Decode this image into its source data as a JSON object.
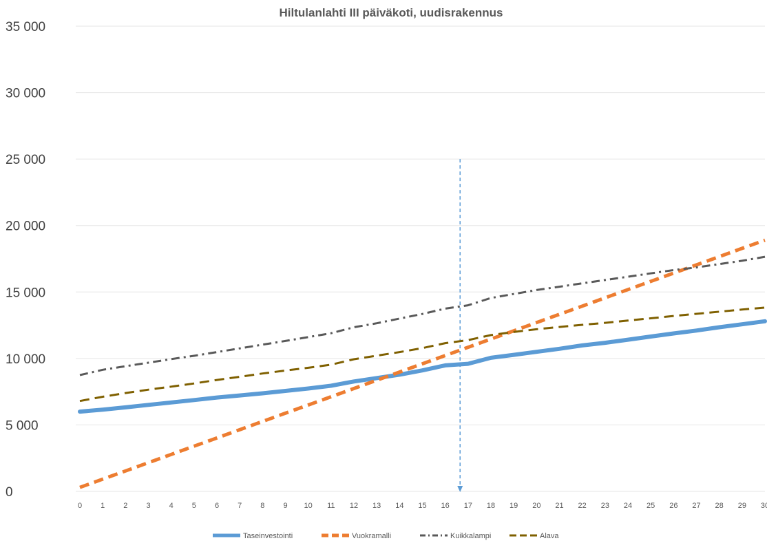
{
  "chart_data": {
    "type": "line",
    "title": "Hiltulanlahti III päiväkoti, uudisrakennus",
    "xlabel": "",
    "ylabel": "",
    "ylim": [
      0,
      35000
    ],
    "yticks": [
      0,
      5000,
      10000,
      15000,
      20000,
      25000,
      30000,
      35000
    ],
    "ytick_labels": [
      "0",
      "5 000",
      "10 000",
      "15 000",
      "20 000",
      "25 000",
      "30 000",
      "35 000"
    ],
    "xlim": [
      0,
      30
    ],
    "x": [
      0,
      1,
      2,
      3,
      4,
      5,
      6,
      7,
      8,
      9,
      10,
      11,
      12,
      13,
      14,
      15,
      16,
      17,
      18,
      19,
      20,
      21,
      22,
      23,
      24,
      25,
      26,
      27,
      28,
      29,
      30
    ],
    "x_labels": [
      "0",
      "1",
      "2",
      "3",
      "4",
      "5",
      "6",
      "7",
      "8",
      "9",
      "10",
      "11",
      "12",
      "13",
      "14",
      "15",
      "16",
      "17",
      "18",
      "19",
      "20",
      "21",
      "22",
      "23",
      "24",
      "25",
      "26",
      "27",
      "28",
      "29",
      "30"
    ],
    "grid": "horizontal",
    "legend_position": "bottom",
    "marker_x": 16.65,
    "series": [
      {
        "name": "Taseinvestointi",
        "color": "#5b9bd5",
        "dash": "solid",
        "values": [
          6000,
          6150,
          6320,
          6510,
          6690,
          6870,
          7060,
          7220,
          7380,
          7560,
          7740,
          7950,
          8270,
          8520,
          8780,
          9100,
          9480,
          9600,
          10050,
          10270,
          10500,
          10730,
          10980,
          11180,
          11410,
          11650,
          11880,
          12100,
          12350,
          12570,
          12800
        ]
      },
      {
        "name": "Vuokramalli",
        "color": "#ed7d31",
        "dash": "dash",
        "values": [
          300,
          920,
          1540,
          2160,
          2780,
          3400,
          4020,
          4640,
          5260,
          5880,
          6500,
          7120,
          7740,
          8360,
          8980,
          9600,
          10220,
          10840,
          11460,
          12080,
          12700,
          13320,
          13940,
          14560,
          15180,
          15800,
          16420,
          17040,
          17660,
          18280,
          18900
        ]
      },
      {
        "name": "Kuikkalampi",
        "color": "#595959",
        "dash": "dashdot",
        "values": [
          8750,
          9150,
          9420,
          9680,
          9950,
          10200,
          10480,
          10760,
          11040,
          11320,
          11610,
          11900,
          12350,
          12650,
          13000,
          13350,
          13750,
          14000,
          14550,
          14850,
          15150,
          15400,
          15650,
          15900,
          16150,
          16400,
          16650,
          16850,
          17100,
          17350,
          17650
        ]
      },
      {
        "name": "Alava",
        "color": "#7f6000",
        "dash": "dash",
        "values": [
          6800,
          7120,
          7400,
          7650,
          7880,
          8120,
          8380,
          8620,
          8870,
          9090,
          9300,
          9530,
          9940,
          10210,
          10480,
          10780,
          11150,
          11380,
          11760,
          11990,
          12200,
          12370,
          12530,
          12680,
          12850,
          13020,
          13200,
          13360,
          13520,
          13680,
          13830
        ]
      }
    ]
  }
}
